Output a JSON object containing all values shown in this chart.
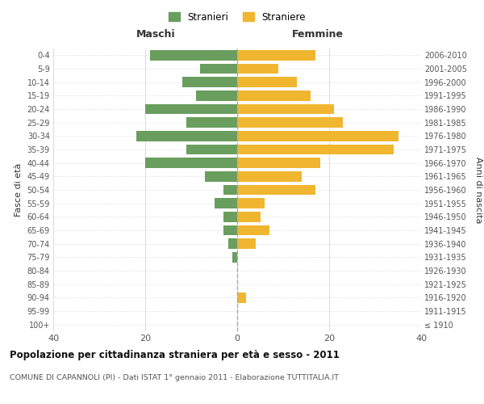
{
  "age_groups": [
    "100+",
    "95-99",
    "90-94",
    "85-89",
    "80-84",
    "75-79",
    "70-74",
    "65-69",
    "60-64",
    "55-59",
    "50-54",
    "45-49",
    "40-44",
    "35-39",
    "30-34",
    "25-29",
    "20-24",
    "15-19",
    "10-14",
    "5-9",
    "0-4"
  ],
  "birth_years": [
    "≤ 1910",
    "1911-1915",
    "1916-1920",
    "1921-1925",
    "1926-1930",
    "1931-1935",
    "1936-1940",
    "1941-1945",
    "1946-1950",
    "1951-1955",
    "1956-1960",
    "1961-1965",
    "1966-1970",
    "1971-1975",
    "1976-1980",
    "1981-1985",
    "1986-1990",
    "1991-1995",
    "1996-2000",
    "2001-2005",
    "2006-2010"
  ],
  "maschi": [
    0,
    0,
    0,
    0,
    0,
    1,
    2,
    3,
    3,
    5,
    3,
    7,
    20,
    11,
    22,
    11,
    20,
    9,
    12,
    8,
    19
  ],
  "femmine": [
    0,
    0,
    2,
    0,
    0,
    0,
    4,
    7,
    5,
    6,
    17,
    14,
    18,
    34,
    35,
    23,
    21,
    16,
    13,
    9,
    17
  ],
  "color_maschi": "#6a9e5e",
  "color_femmine": "#f0b630",
  "xlim": 40,
  "title": "Popolazione per cittadinanza straniera per età e sesso - 2011",
  "subtitle": "COMUNE DI CAPANNOLI (PI) - Dati ISTAT 1° gennaio 2011 - Elaborazione TUTTITALIA.IT",
  "ylabel_left": "Fasce di età",
  "ylabel_right": "Anni di nascita",
  "legend_maschi": "Stranieri",
  "legend_femmine": "Straniere",
  "header_left": "Maschi",
  "header_right": "Femmine",
  "background_color": "#ffffff",
  "grid_color": "#cccccc",
  "dashed_line_color": "#aaaaaa"
}
